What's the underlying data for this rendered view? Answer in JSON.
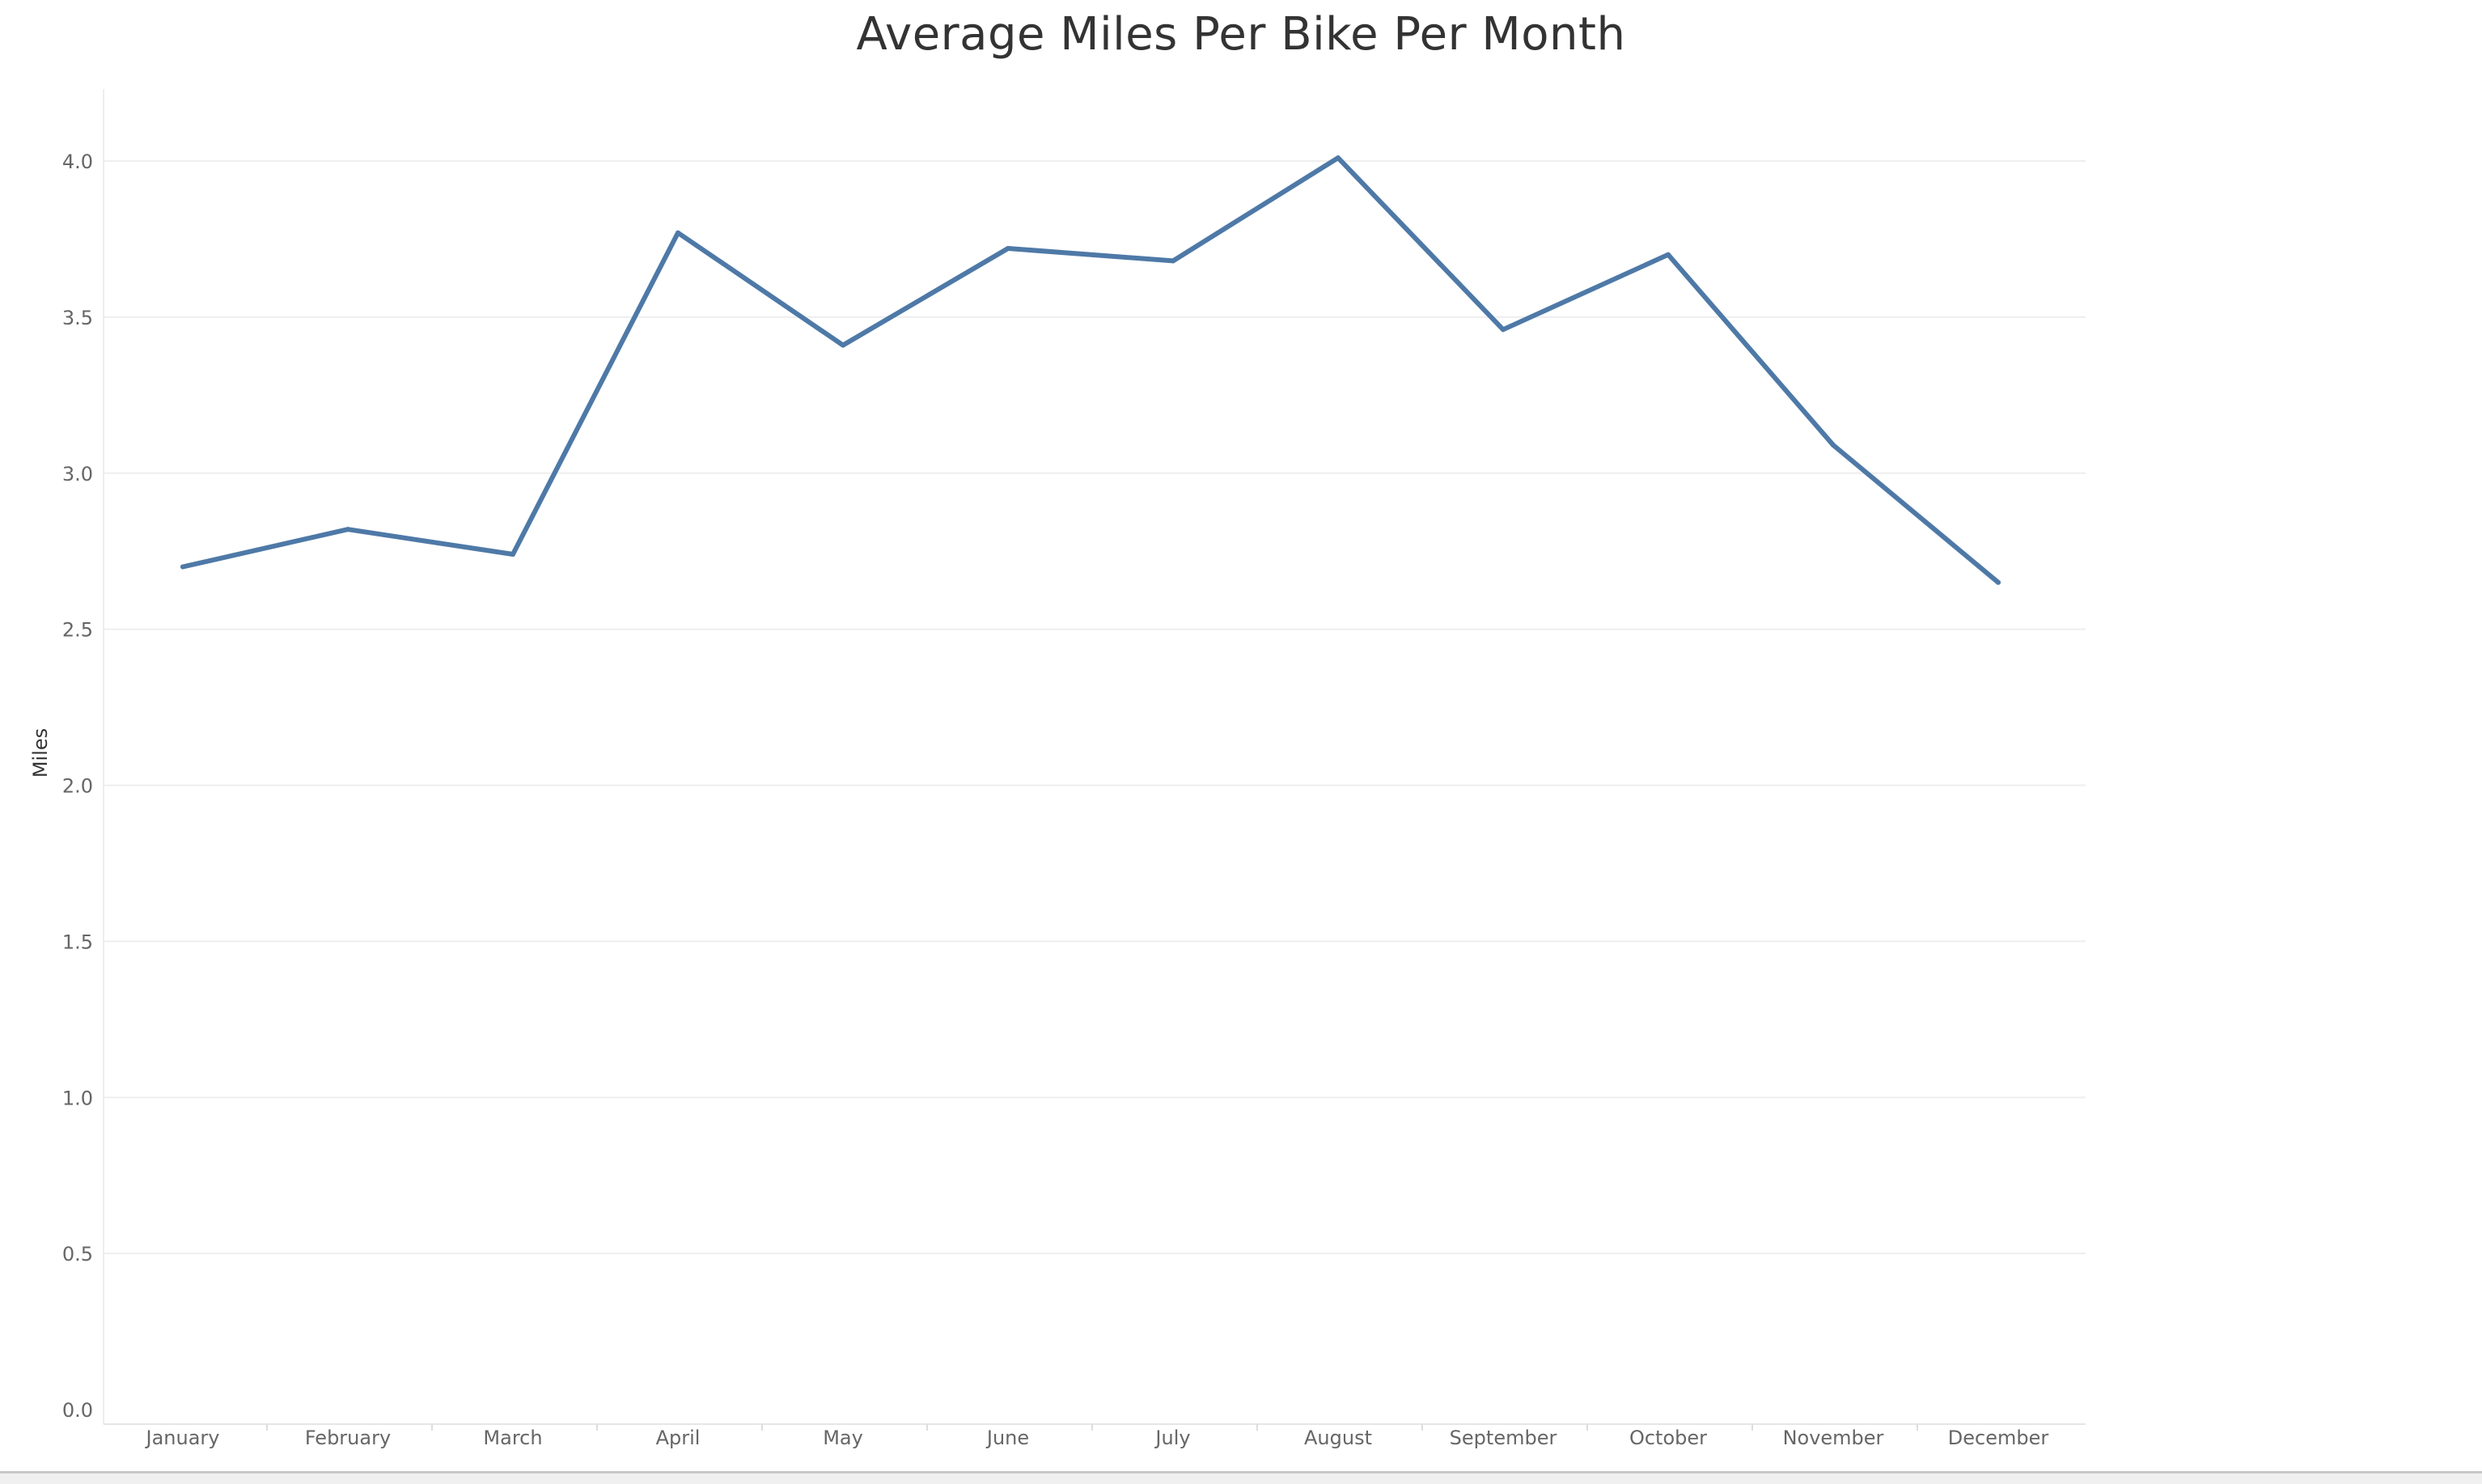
{
  "chart_data": {
    "type": "line",
    "title": "Average Miles Per Bike Per Month",
    "xlabel": "",
    "ylabel": "Miles",
    "categories": [
      "January",
      "February",
      "March",
      "April",
      "May",
      "June",
      "July",
      "August",
      "September",
      "October",
      "November",
      "December"
    ],
    "series": [
      {
        "values": [
          2.7,
          2.82,
          2.74,
          3.77,
          3.41,
          3.72,
          3.68,
          4.01,
          3.46,
          3.7,
          3.09,
          2.65
        ]
      }
    ],
    "ylim": [
      0,
      4.0
    ],
    "yticks": [
      "0.0",
      "0.5",
      "1.0",
      "1.5",
      "2.0",
      "2.5",
      "3.0",
      "3.5",
      "4.0"
    ],
    "grid": true,
    "colors": {
      "line": "#4e79a7",
      "grid": "#eeeeee",
      "tick_text": "#666666",
      "title_text": "#333333"
    }
  }
}
